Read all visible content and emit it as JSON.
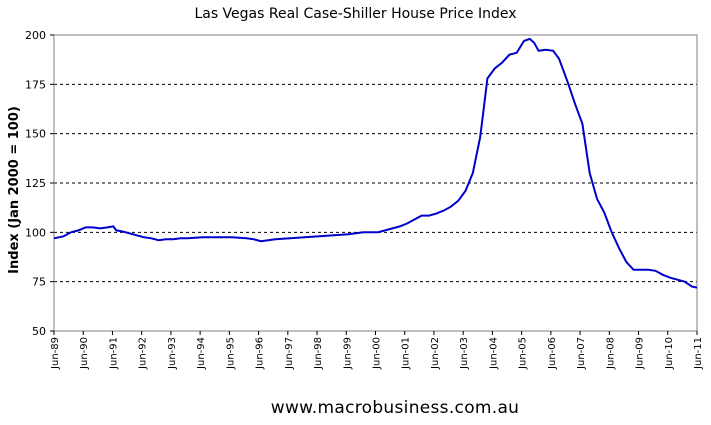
{
  "chart_data": {
    "type": "line",
    "title": "Las Vegas Real Case-Shiller House Price Index",
    "ylabel": "Index (Jan 2000 = 100)",
    "xlabel": "",
    "ylim": [
      50,
      200
    ],
    "yticks": [
      "50",
      "75",
      "100",
      "125",
      "150",
      "175",
      "200"
    ],
    "grid": "horizontal dashed",
    "legend": "none",
    "line_color": "#0000cc",
    "xticks": [
      "Jun-89",
      "Jun-90",
      "Jun-91",
      "Jun-92",
      "Jun-93",
      "Jun-94",
      "Jun-95",
      "Jun-96",
      "Jun-97",
      "Jun-98",
      "Jun-99",
      "Jun-00",
      "Jun-01",
      "Jun-02",
      "Jun-03",
      "Jun-04",
      "Jun-05",
      "Jun-06",
      "Jun-07",
      "Jun-08",
      "Jun-09",
      "Jun-10",
      "Jun-11"
    ],
    "series": [
      {
        "x": [
          1989.42,
          1989.75,
          1990.0,
          1990.25,
          1990.5,
          1990.75,
          1991.0,
          1991.25,
          1991.45,
          1991.55,
          1991.75,
          1992.0,
          1992.25,
          1992.5,
          1992.75,
          1993.0,
          1993.25,
          1993.5,
          1993.75,
          1994.0,
          1994.5,
          1995.0,
          1995.5,
          1996.0,
          1996.25,
          1996.5,
          1996.75,
          1997.0,
          1997.5,
          1998.0,
          1998.5,
          1999.0,
          1999.5,
          2000.0,
          2000.5,
          2000.75,
          2001.0,
          2001.25,
          2001.5,
          2001.75,
          2002.0,
          2002.25,
          2002.5,
          2002.75,
          2003.0,
          2003.25,
          2003.5,
          2003.75,
          2004.0,
          2004.1,
          2004.25,
          2004.5,
          2004.75,
          2005.0,
          2005.25,
          2005.5,
          2005.7,
          2005.85,
          2006.0,
          2006.25,
          2006.5,
          2006.7,
          2006.85,
          2007.0,
          2007.25,
          2007.5,
          2007.75,
          2008.0,
          2008.25,
          2008.5,
          2008.75,
          2009.0,
          2009.25,
          2009.5,
          2009.75,
          2010.0,
          2010.25,
          2010.5,
          2010.75,
          2011.0,
          2011.25,
          2011.42
        ],
        "y": [
          97,
          98,
          100,
          101,
          102.5,
          102.5,
          102,
          102.5,
          103,
          101,
          100.5,
          99.5,
          98.5,
          97.5,
          97,
          96,
          96.5,
          96.5,
          97,
          97,
          97.5,
          97.5,
          97.5,
          97,
          96.5,
          95.5,
          96,
          96.5,
          97,
          97.5,
          98,
          98.5,
          99,
          100,
          100,
          101,
          102,
          103,
          104.5,
          106.5,
          108.5,
          108.5,
          109.5,
          111,
          113,
          116,
          121,
          130,
          148,
          160,
          178,
          183,
          186,
          190,
          191,
          197,
          198,
          196,
          192,
          192.5,
          192,
          188,
          182,
          176,
          165,
          155,
          130,
          117,
          110,
          100,
          92,
          85,
          81,
          81,
          81,
          80.5,
          78.5,
          77,
          76,
          75,
          72.5,
          72
        ]
      }
    ],
    "footer": "www.macrobusiness.com.au"
  }
}
